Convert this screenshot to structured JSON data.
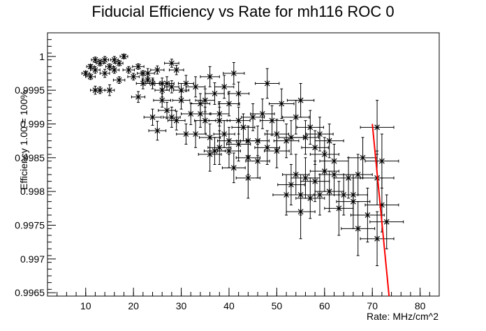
{
  "chart_data": {
    "type": "scatter",
    "title": "Fiducial Efficiency vs Rate for mh116 ROC 0",
    "xlabel": "Rate: MHz/cm^2",
    "ylabel": "Efficiency 1.00 = 100%",
    "xlim": [
      2,
      84
    ],
    "ylim": [
      0.99645,
      1.00035
    ],
    "xticks": [
      10,
      20,
      30,
      40,
      50,
      60,
      70,
      80
    ],
    "yticks": [
      0.9965,
      0.997,
      0.9975,
      0.998,
      0.9985,
      0.999,
      0.9995,
      1
    ],
    "ytick_labels": [
      "0.9965",
      "0.997",
      "0.9975",
      "0.998",
      "0.9985",
      "0.999",
      "0.9995",
      "1"
    ],
    "marker": "asterisk",
    "colors": {
      "points": "#000000",
      "fit": "#ff0000"
    },
    "series": [
      {
        "points": [
          [
            10,
            0.99975,
            0.8,
            3e-05
          ],
          [
            11,
            0.99985,
            0.8,
            3e-05
          ],
          [
            12,
            0.99995,
            0.8,
            4e-05
          ],
          [
            13,
            0.9999,
            0.8,
            4e-05
          ],
          [
            14,
            0.99995,
            0.8,
            5e-05
          ],
          [
            15,
            0.99985,
            0.8,
            4e-05
          ],
          [
            16,
            0.99995,
            0.8,
            5e-05
          ],
          [
            17,
            0.9999,
            0.8,
            4e-05
          ],
          [
            18,
            1.0,
            0.8,
            3e-05
          ],
          [
            11,
            0.9997,
            1,
            4e-05
          ],
          [
            12,
            0.9998,
            1,
            5e-05
          ],
          [
            13,
            0.9995,
            1,
            5e-05
          ],
          [
            14,
            0.99975,
            1,
            6e-05
          ],
          [
            15,
            0.9995,
            1,
            8e-05
          ],
          [
            16,
            0.9998,
            1,
            5e-05
          ],
          [
            12,
            0.9995,
            1,
            6e-05
          ],
          [
            17,
            0.99965,
            1.2,
            5e-05
          ],
          [
            19,
            0.9998,
            1.2,
            5e-05
          ],
          [
            20,
            0.9997,
            1.2,
            5e-05
          ],
          [
            21,
            0.99985,
            1.2,
            4e-05
          ],
          [
            22,
            0.99975,
            1.2,
            4e-05
          ],
          [
            23,
            0.99965,
            1.2,
            5e-05
          ],
          [
            21,
            0.9994,
            1.4,
            8e-05
          ],
          [
            22,
            0.9996,
            1.4,
            8e-05
          ],
          [
            23,
            0.99975,
            1.4,
            7e-05
          ],
          [
            24,
            0.9996,
            1.4,
            8e-05
          ],
          [
            25,
            0.9998,
            1.4,
            6e-05
          ],
          [
            26,
            0.9996,
            1.5,
            8e-05
          ],
          [
            26,
            0.9995,
            1.5,
            0.0001
          ],
          [
            27,
            0.9996,
            1.5,
            0.0001
          ],
          [
            28,
            0.99955,
            1.5,
            9e-05
          ],
          [
            28,
            0.9999,
            1.5,
            6e-05
          ],
          [
            29,
            0.9998,
            1.5,
            7e-05
          ],
          [
            30,
            0.9995,
            1.6,
            0.0001
          ],
          [
            31,
            0.9996,
            1.6,
            0.00012
          ],
          [
            24,
            0.9991,
            1.8,
            0.00012
          ],
          [
            25,
            0.9989,
            1.8,
            0.00014
          ],
          [
            26,
            0.99935,
            1.8,
            0.0001
          ],
          [
            27,
            0.9992,
            1.8,
            0.00012
          ],
          [
            28,
            0.9991,
            1.8,
            0.00015
          ],
          [
            29,
            0.99905,
            1.8,
            0.00014
          ],
          [
            30,
            0.99935,
            1.8,
            0.00013
          ],
          [
            31,
            0.99885,
            2,
            0.00015
          ],
          [
            32,
            0.99915,
            2,
            0.00016
          ],
          [
            33,
            0.99955,
            2,
            0.00015
          ],
          [
            34,
            0.9993,
            2,
            0.00015
          ],
          [
            35,
            0.99935,
            2,
            0.00017
          ],
          [
            36,
            0.9997,
            2,
            0.00015
          ],
          [
            37,
            0.99945,
            2,
            0.00016
          ],
          [
            38,
            0.99915,
            2,
            0.00018
          ],
          [
            39,
            0.99955,
            2,
            0.00017
          ],
          [
            40,
            0.9993,
            2.2,
            0.00018
          ],
          [
            41,
            0.99975,
            2.2,
            0.00016
          ],
          [
            42,
            0.99945,
            2.2,
            0.00017
          ],
          [
            33,
            0.99885,
            2.2,
            0.0002
          ],
          [
            34,
            0.99915,
            2.2,
            0.0002
          ],
          [
            35,
            0.99905,
            2.2,
            0.0002
          ],
          [
            36,
            0.9988,
            2.2,
            0.0002
          ],
          [
            37,
            0.9986,
            2.2,
            0.0002
          ],
          [
            38,
            0.99905,
            2.2,
            0.0002
          ],
          [
            39,
            0.99885,
            2.2,
            0.0002
          ],
          [
            40,
            0.99875,
            2.4,
            0.0002
          ],
          [
            41,
            0.99835,
            2.4,
            0.00022
          ],
          [
            42,
            0.99905,
            2.4,
            0.0002
          ],
          [
            43,
            0.99895,
            2.4,
            0.0002
          ],
          [
            44,
            0.99875,
            2.4,
            0.00022
          ],
          [
            45,
            0.9991,
            2.4,
            0.0002
          ],
          [
            46,
            0.99875,
            2.4,
            0.00022
          ],
          [
            48,
            0.9996,
            2.5,
            0.00022
          ],
          [
            47,
            0.99915,
            2.5,
            0.00022
          ],
          [
            49,
            0.99905,
            2.5,
            0.00022
          ],
          [
            50,
            0.99885,
            2.5,
            0.00022
          ],
          [
            51,
            0.9993,
            2.6,
            0.00022
          ],
          [
            36,
            0.99855,
            2.4,
            0.00025
          ],
          [
            38,
            0.99865,
            2.4,
            0.00025
          ],
          [
            40,
            0.9986,
            2.4,
            0.00025
          ],
          [
            42,
            0.9987,
            2.5,
            0.00025
          ],
          [
            44,
            0.9985,
            2.5,
            0.00025
          ],
          [
            46,
            0.99845,
            2.5,
            0.00025
          ],
          [
            48,
            0.99865,
            2.6,
            0.00025
          ],
          [
            50,
            0.9986,
            2.6,
            0.00025
          ],
          [
            52,
            0.99875,
            2.6,
            0.00025
          ],
          [
            53,
            0.9988,
            2.6,
            0.00025
          ],
          [
            54,
            0.9991,
            2.8,
            0.00025
          ],
          [
            55,
            0.99935,
            2.8,
            0.00025
          ],
          [
            56,
            0.9988,
            2.8,
            0.00025
          ],
          [
            57,
            0.99895,
            2.8,
            0.00025
          ],
          [
            58,
            0.99865,
            2.8,
            0.00025
          ],
          [
            59,
            0.99885,
            2.8,
            0.00025
          ],
          [
            60,
            0.99855,
            3,
            0.00025
          ],
          [
            61,
            0.99875,
            3,
            0.00025
          ],
          [
            62,
            0.99845,
            3,
            0.00025
          ],
          [
            44,
            0.9982,
            2.5,
            0.0003
          ],
          [
            52,
            0.99795,
            2.8,
            0.0003
          ],
          [
            53,
            0.9981,
            2.8,
            0.0003
          ],
          [
            54,
            0.99825,
            2.8,
            0.0003
          ],
          [
            55,
            0.99795,
            2.8,
            0.0003
          ],
          [
            56,
            0.9982,
            3,
            0.0003
          ],
          [
            57,
            0.9979,
            3,
            0.0003
          ],
          [
            58,
            0.99815,
            3,
            0.0003
          ],
          [
            59,
            0.99795,
            3,
            0.0003
          ],
          [
            60,
            0.9983,
            3,
            0.0003
          ],
          [
            61,
            0.998,
            3,
            0.0003
          ],
          [
            62,
            0.99825,
            3,
            0.0003
          ],
          [
            64,
            0.99795,
            3,
            0.0003
          ],
          [
            65,
            0.9982,
            3,
            0.0003
          ],
          [
            66,
            0.99795,
            3,
            0.0003
          ],
          [
            67,
            0.99825,
            3,
            0.0003
          ],
          [
            68,
            0.9985,
            3,
            0.0003
          ],
          [
            55,
            0.9977,
            3,
            0.0004
          ],
          [
            63,
            0.99775,
            3,
            0.0004
          ],
          [
            66,
            0.99785,
            3.5,
            0.0004
          ],
          [
            67,
            0.99745,
            3.5,
            0.0004
          ],
          [
            69,
            0.99765,
            3.5,
            0.0004
          ],
          [
            71,
            0.9982,
            3.5,
            0.0004
          ],
          [
            71,
            0.9973,
            3.5,
            0.0004
          ],
          [
            71,
            0.99895,
            3.5,
            0.0004
          ],
          [
            72,
            0.99845,
            3.5,
            0.0004
          ],
          [
            72,
            0.9978,
            3.5,
            0.0004
          ],
          [
            73,
            0.99755,
            3.5,
            0.0004
          ]
        ]
      }
    ],
    "fit_line": {
      "x": [
        70,
        73.5
      ],
      "y": [
        0.999,
        0.99645
      ]
    }
  }
}
